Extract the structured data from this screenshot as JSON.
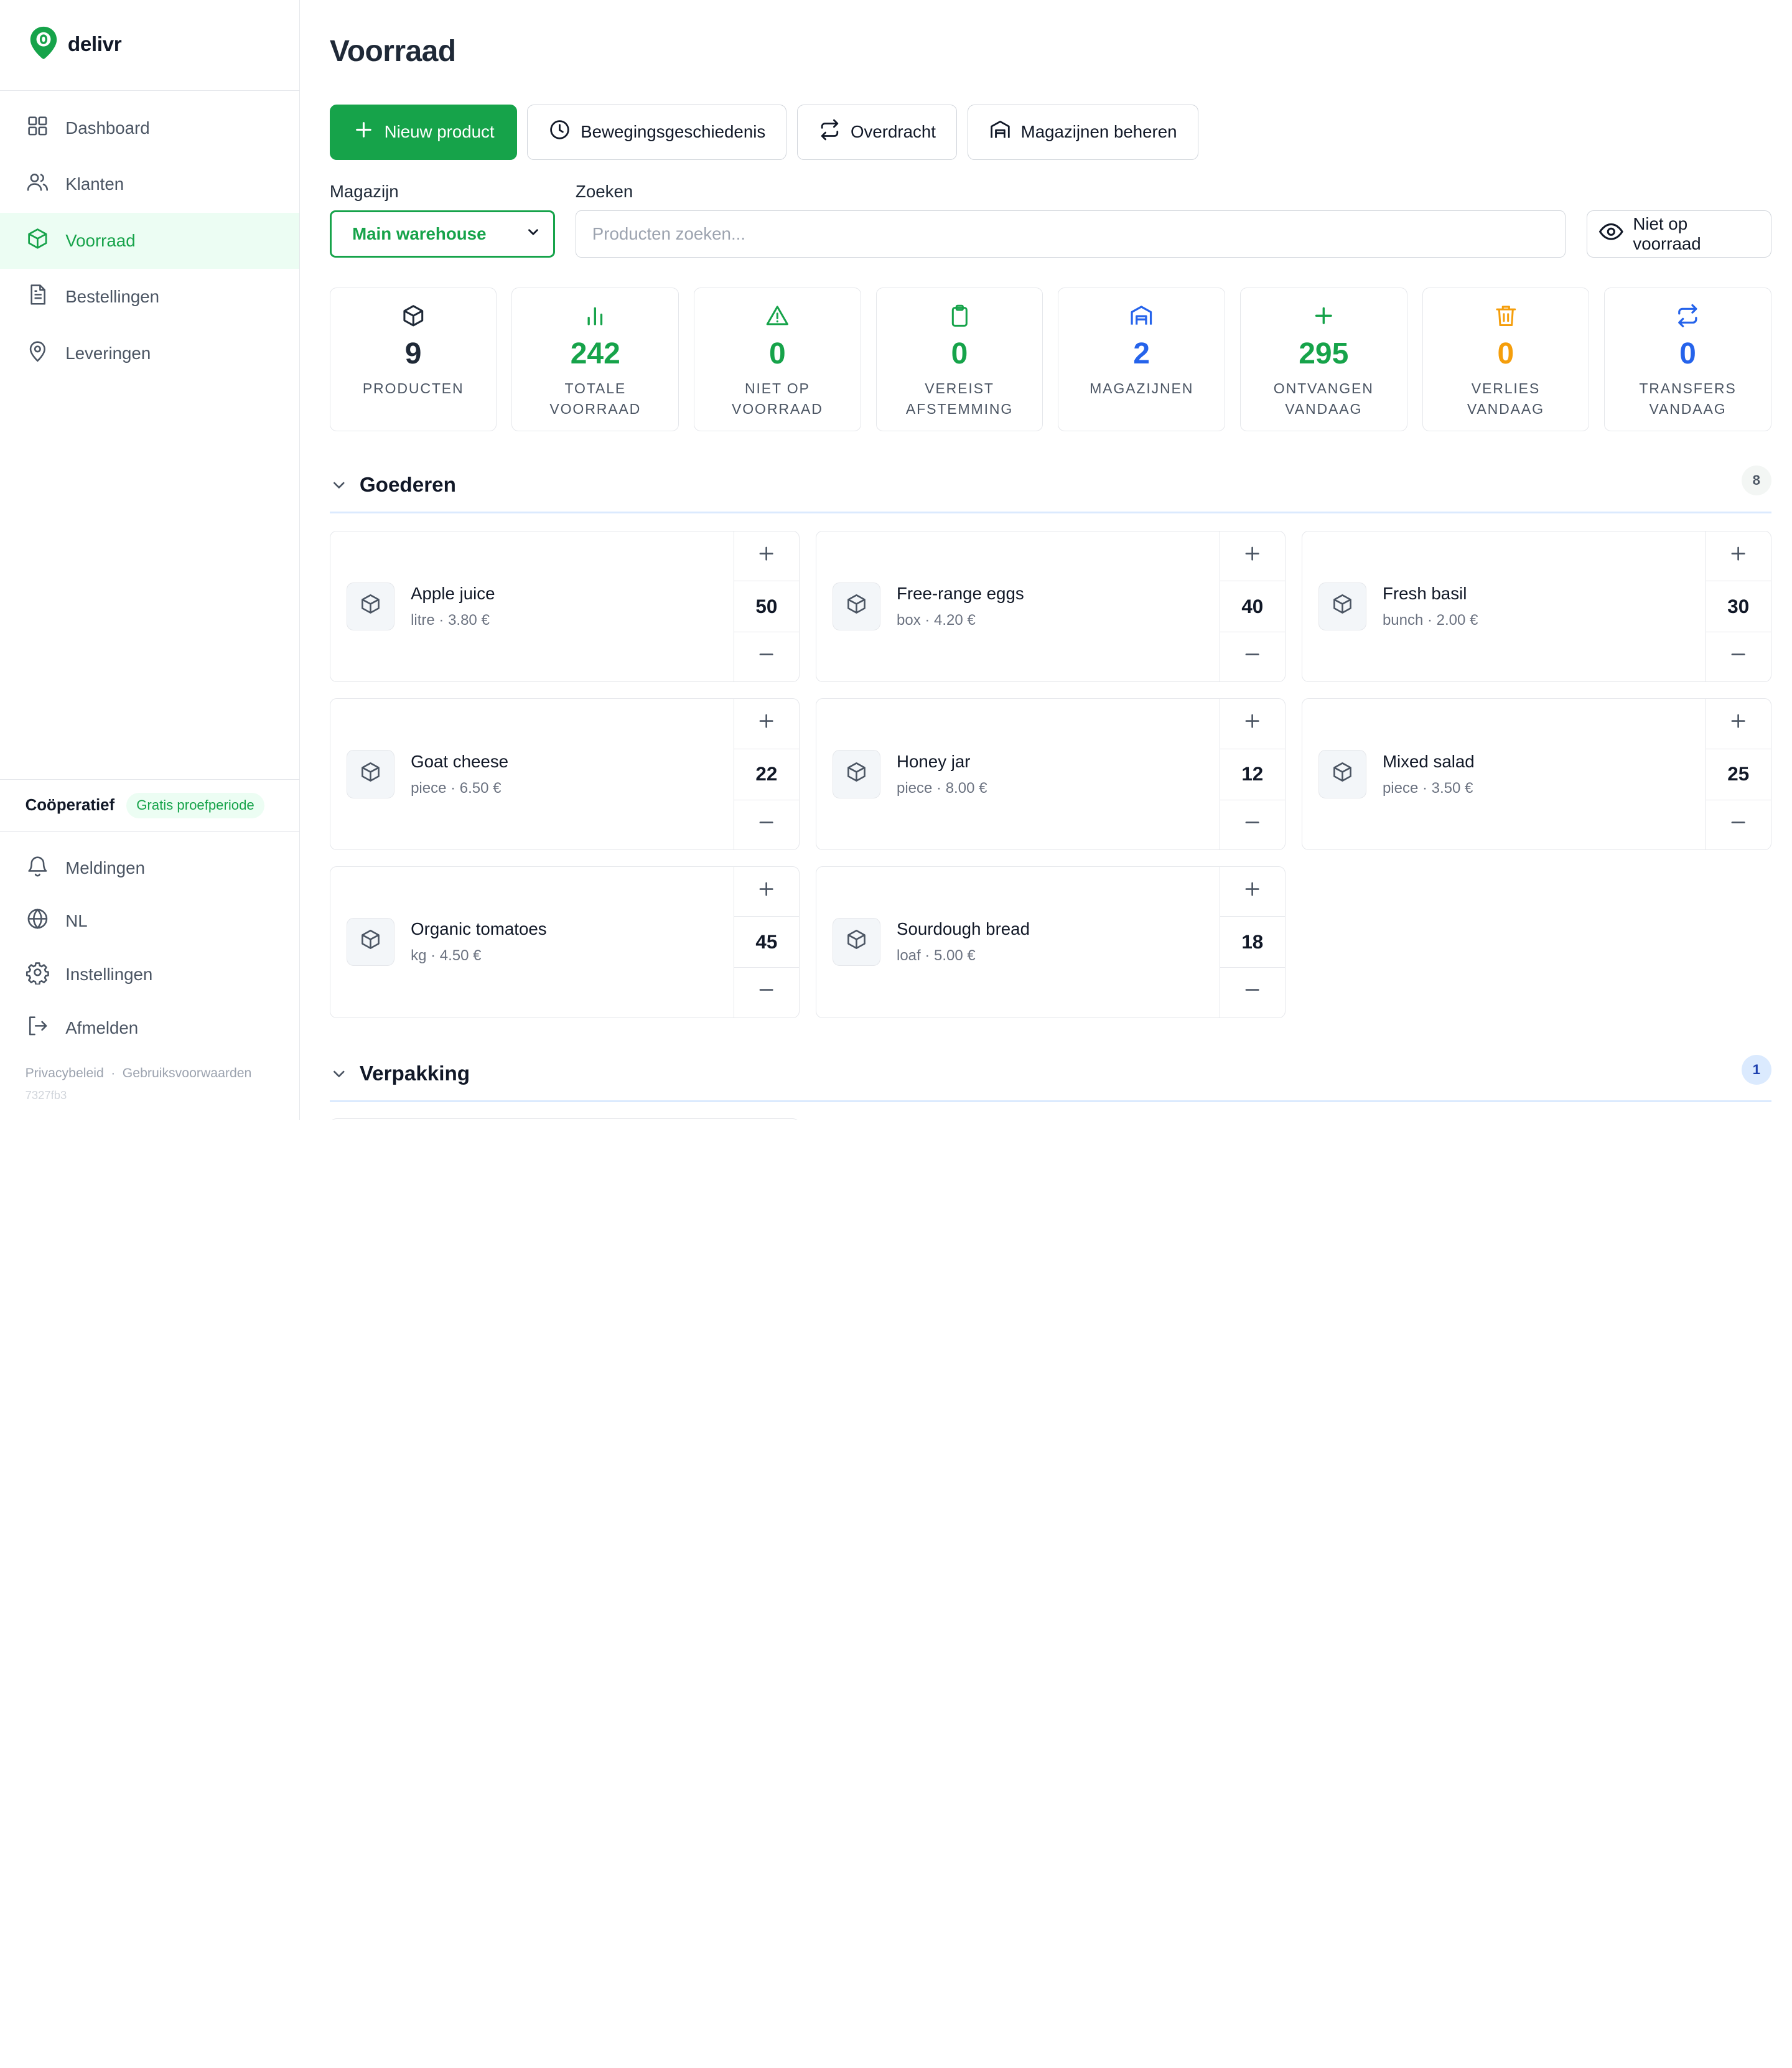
{
  "app": {
    "brand": "delivr"
  },
  "sidebar": {
    "items": [
      {
        "label": "Dashboard",
        "icon": "grid-icon"
      },
      {
        "label": "Klanten",
        "icon": "users-icon"
      },
      {
        "label": "Voorraad",
        "icon": "box-icon",
        "active": true
      },
      {
        "label": "Bestellingen",
        "icon": "document-icon"
      },
      {
        "label": "Leveringen",
        "icon": "location-pin-icon"
      }
    ],
    "org_name": "Coöperatief",
    "org_badge": "Gratis proefperiode",
    "bottom_items": [
      {
        "label": "Meldingen",
        "icon": "bell-icon"
      },
      {
        "label": "NL",
        "icon": "globe-icon"
      },
      {
        "label": "Instellingen",
        "icon": "gear-icon"
      },
      {
        "label": "Afmelden",
        "icon": "logout-icon"
      }
    ],
    "footer": {
      "privacy": "Privacybeleid",
      "separator": "·",
      "terms": "Gebruiksvoorwaarden",
      "version": "7327fb3"
    }
  },
  "page": {
    "title": "Voorraad"
  },
  "actions": {
    "new_product": "Nieuw product",
    "history": "Bewegingsgeschiedenis",
    "transfer": "Overdracht",
    "manage_warehouses": "Magazijnen beheren"
  },
  "filters": {
    "warehouse_label": "Magazijn",
    "warehouse_value": "Main warehouse",
    "search_label": "Zoeken",
    "search_placeholder": "Producten zoeken...",
    "out_of_stock_toggle": "Niet op voorraad"
  },
  "stats": [
    {
      "value": "9",
      "label": "PRODUCTEN",
      "color": "#1f2937",
      "icon": "box-icon"
    },
    {
      "value": "242",
      "label": "TOTALE VOORRAAD",
      "color": "#16a34a",
      "icon": "bar-chart-icon"
    },
    {
      "value": "0",
      "label": "NIET OP VOORRAAD",
      "color": "#16a34a",
      "icon": "warning-icon"
    },
    {
      "value": "0",
      "label": "VEREIST AFSTEMMING",
      "color": "#16a34a",
      "icon": "clipboard-icon"
    },
    {
      "value": "2",
      "label": "MAGAZIJNEN",
      "color": "#2563eb",
      "icon": "warehouse-icon"
    },
    {
      "value": "295",
      "label": "ONTVANGEN VANDAAG",
      "color": "#16a34a",
      "icon": "plus-icon"
    },
    {
      "value": "0",
      "label": "VERLIES VANDAAG",
      "color": "#f59e0b",
      "icon": "trash-icon"
    },
    {
      "value": "0",
      "label": "TRANSFERS VANDAAG",
      "color": "#2563eb",
      "icon": "transfer-icon"
    }
  ],
  "sections": [
    {
      "title": "Goederen",
      "count": "8",
      "products": [
        {
          "name": "Apple juice",
          "unit": "litre",
          "price": "3.80 €",
          "qty": "50"
        },
        {
          "name": "Free-range eggs",
          "unit": "box",
          "price": "4.20 €",
          "qty": "40"
        },
        {
          "name": "Fresh basil",
          "unit": "bunch",
          "price": "2.00 €",
          "qty": "30"
        },
        {
          "name": "Goat cheese",
          "unit": "piece",
          "price": "6.50 €",
          "qty": "22"
        },
        {
          "name": "Honey jar",
          "unit": "piece",
          "price": "8.00 €",
          "qty": "12"
        },
        {
          "name": "Mixed salad",
          "unit": "piece",
          "price": "3.50 €",
          "qty": "25"
        },
        {
          "name": "Organic tomatoes",
          "unit": "kg",
          "price": "4.50 €",
          "qty": "45"
        },
        {
          "name": "Sourdough bread",
          "unit": "loaf",
          "price": "5.00 €",
          "qty": "18"
        }
      ]
    },
    {
      "title": "Verpakking",
      "count": "1"
    }
  ],
  "colors": {
    "accent": "#16a34a",
    "accent_bg": "#ecfdf3",
    "blue": "#2563eb",
    "amber": "#f59e0b"
  }
}
